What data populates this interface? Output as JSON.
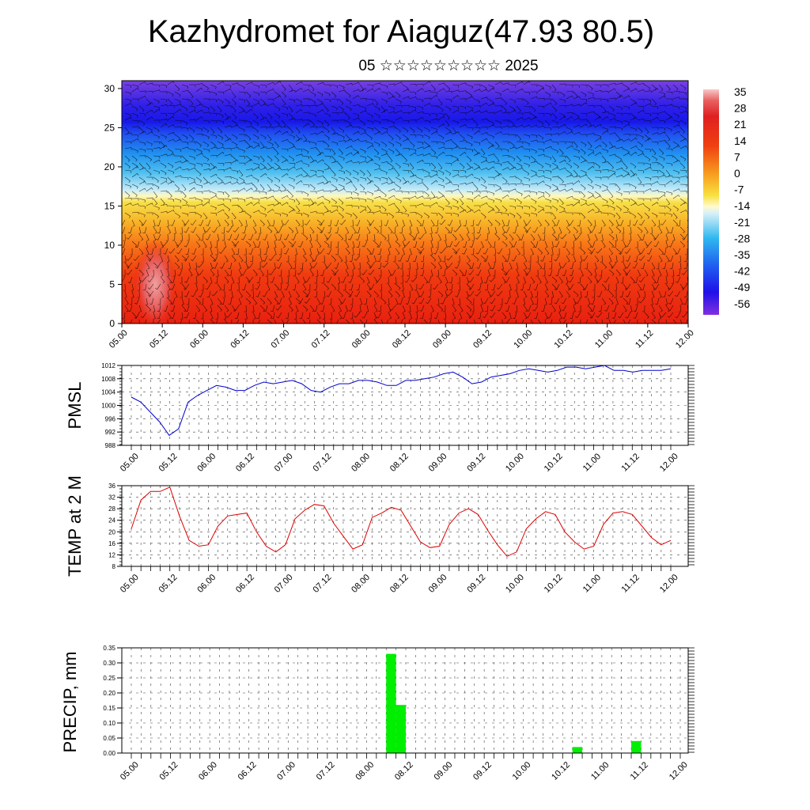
{
  "header": {
    "title": "Kazhydromet for Aiaguz(47.93 80.5)",
    "subtitle": "05 ☆☆☆☆☆☆☆☆☆ 2025"
  },
  "colors": {
    "pmsl_line": "#0000cc",
    "temp_line": "#dd0000",
    "precip_bar": "#00ee00",
    "wind_barb": "#000000"
  },
  "chart_data": [
    {
      "type": "heatmap",
      "title": "",
      "xlabel": "",
      "ylabel": "",
      "y_ticks": [
        "0",
        "5",
        "10",
        "15",
        "20",
        "25",
        "30"
      ],
      "ylim": [
        0,
        31
      ],
      "x_ticks": [
        "05.00",
        "05.12",
        "06.00",
        "06.12",
        "07.00",
        "07.12",
        "08.00",
        "08.12",
        "09.00",
        "09.12",
        "10.00",
        "10.12",
        "11.00",
        "11.12",
        "12.00"
      ],
      "colorbar_labels": [
        "35",
        "28",
        "21",
        "14",
        "7",
        "0",
        "-7",
        "-14",
        "-21",
        "-28",
        "-35",
        "-42",
        "-49",
        "-56"
      ],
      "colorbar_range": [
        -60,
        38
      ],
      "overlay": "wind barbs",
      "freezing_level_approx": 16,
      "tropopause_cold_core_approx": 25
    },
    {
      "type": "line",
      "ylabel": "PMSL",
      "y_ticks": [
        "988",
        "992",
        "996",
        "1000",
        "1004",
        "1008",
        "1012"
      ],
      "ylim": [
        988,
        1012
      ],
      "x_ticks": [
        "05.00",
        "05.12",
        "06.00",
        "06.12",
        "07.00",
        "07.12",
        "08.00",
        "08.12",
        "09.00",
        "09.12",
        "10.00",
        "10.12",
        "11.00",
        "11.12",
        "12.00"
      ],
      "x_step_hours": 3,
      "grid": true,
      "series": [
        {
          "values": [
            1002.5,
            1001.0,
            998.0,
            995.0,
            991.0,
            993.0,
            1001.0,
            1003.0,
            1004.5,
            1006.0,
            1005.5,
            1004.5,
            1004.5,
            1006.0,
            1007.0,
            1006.5,
            1007.0,
            1007.5,
            1006.5,
            1004.5,
            1004.0,
            1005.5,
            1006.5,
            1006.5,
            1007.5,
            1007.5,
            1007.0,
            1006.0,
            1006.0,
            1007.5,
            1007.5,
            1008.0,
            1008.5,
            1009.5,
            1010.0,
            1008.5,
            1006.5,
            1007.0,
            1008.5,
            1009.0,
            1009.5,
            1010.5,
            1011.0,
            1010.5,
            1010.0,
            1010.5,
            1011.5,
            1011.5,
            1011.0,
            1011.5,
            1012.0,
            1010.5,
            1010.5,
            1010.0,
            1010.5,
            1010.5,
            1010.5,
            1011.0
          ]
        }
      ]
    },
    {
      "type": "line",
      "ylabel": "TEMP at 2 M",
      "y_ticks": [
        "8",
        "12",
        "16",
        "20",
        "24",
        "28",
        "32",
        "36"
      ],
      "ylim": [
        8,
        36
      ],
      "x_ticks": [
        "05.00",
        "05.12",
        "06.00",
        "06.12",
        "07.00",
        "07.12",
        "08.00",
        "08.12",
        "09.00",
        "09.12",
        "10.00",
        "10.12",
        "11.00",
        "11.12",
        "12.00"
      ],
      "x_step_hours": 3,
      "grid": true,
      "series": [
        {
          "values": [
            21.0,
            31.0,
            34.0,
            34.0,
            35.5,
            25.5,
            17.0,
            15.0,
            15.5,
            22.0,
            25.5,
            26.0,
            26.5,
            20.0,
            15.0,
            13.0,
            15.5,
            24.5,
            27.5,
            29.5,
            29.0,
            23.0,
            18.5,
            14.0,
            15.5,
            25.0,
            26.5,
            28.5,
            27.5,
            22.0,
            16.5,
            14.5,
            15.0,
            22.5,
            26.5,
            28.0,
            26.0,
            20.5,
            15.5,
            11.5,
            13.0,
            21.0,
            24.5,
            27.0,
            26.0,
            20.0,
            16.5,
            14.0,
            15.0,
            22.5,
            26.5,
            27.0,
            26.0,
            22.0,
            18.0,
            15.5,
            17.0
          ]
        }
      ]
    },
    {
      "type": "bar",
      "ylabel": "PRECIP, mm",
      "y_ticks": [
        "0.00",
        "0.05",
        "0.10",
        "0.15",
        "0.20",
        "0.25",
        "0.30",
        "0.35"
      ],
      "ylim": [
        0,
        0.35
      ],
      "x_ticks": [
        "05.00",
        "05.12",
        "06.00",
        "06.12",
        "07.00",
        "07.12",
        "08.00",
        "08.12",
        "09.00",
        "09.12",
        "10.00",
        "10.12",
        "11.00",
        "11.12",
        "12.00"
      ],
      "grid": true,
      "bars": [
        {
          "x_hours": 78,
          "value": 0.33
        },
        {
          "x_hours": 81,
          "value": 0.16
        },
        {
          "x_hours": 135,
          "value": 0.02
        },
        {
          "x_hours": 153,
          "value": 0.04
        }
      ]
    }
  ]
}
